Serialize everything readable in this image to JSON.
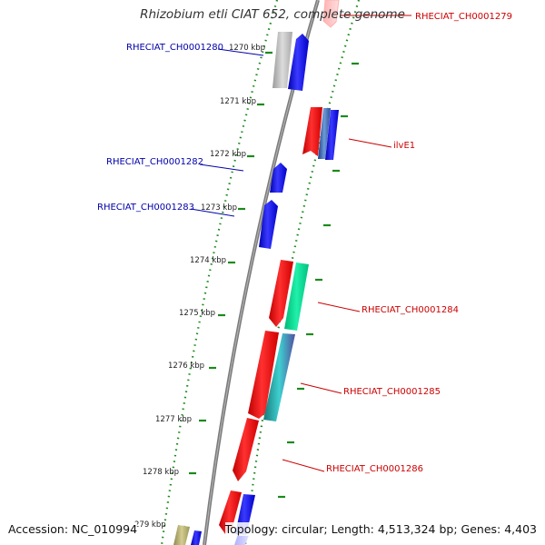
{
  "map": {
    "title": "Rhizobium etli CIAT 652, complete genome",
    "accession": "Accession: NC_010994",
    "topology": "Topology: circular; Length: 4,513,324 bp; Genes: 4,403",
    "ticks": [
      "1270 kbp",
      "1271 kbp",
      "1272 kbp",
      "1273 kbp",
      "1274 kbp",
      "1275 kbp",
      "1276 kbp",
      "1277 kbp",
      "1278 kbp",
      "279 kbp"
    ],
    "left_labels": [
      "RHECIAT_CH0001280",
      "RHECIAT_CH0001282",
      "RHECIAT_CH0001283"
    ],
    "right_labels": [
      "RHECIAT_CH0001279",
      "ilvE1",
      "RHECIAT_CH0001284",
      "RHECIAT_CH0001285",
      "RHECIAT_CH0001286"
    ],
    "colors": {
      "backbone": "#808080",
      "ticks": "#1a8a1a",
      "left_label": "#0000aa",
      "right_label": "#cc0000",
      "gene_red": "#ff0000",
      "gene_blue": "#0000ff",
      "gene_green": "#00e69a",
      "gene_teal": "#2aa6a6",
      "gene_grey": "#b8b8b8",
      "gene_olive": "#b8b070",
      "gene_steel": "#4f7ab4"
    }
  }
}
